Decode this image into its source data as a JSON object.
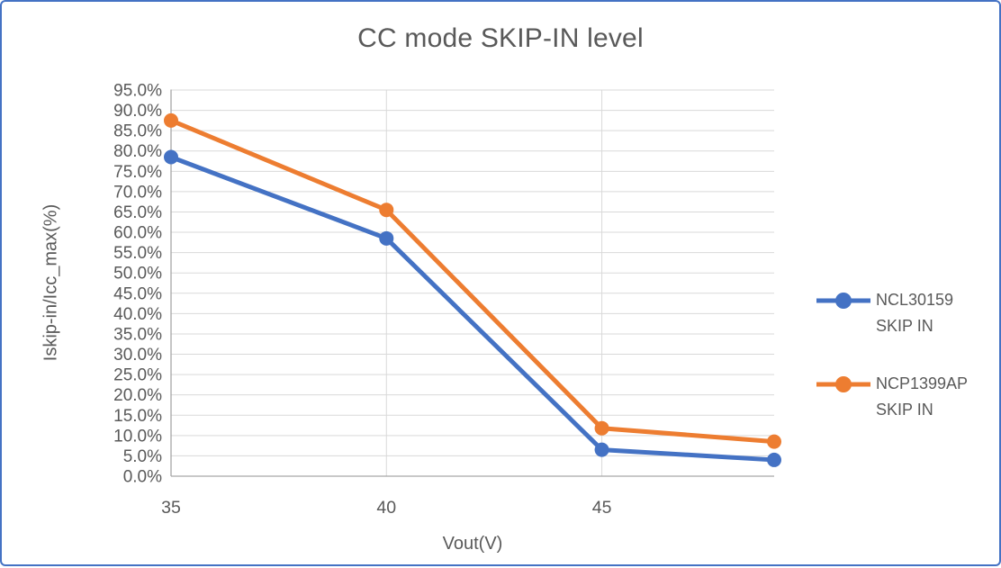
{
  "chart_data": {
    "type": "line",
    "title": "CC mode SKIP-IN level",
    "xlabel": "Vout(V)",
    "ylabel": "Iskip-in/Icc_max(%)",
    "x": [
      35,
      40,
      45,
      49
    ],
    "series": [
      {
        "name": "NCL30159 SKIP IN",
        "color": "#4472C4",
        "values": [
          78.5,
          58.5,
          6.5,
          4.0
        ]
      },
      {
        "name": "NCP1399AP SKIP IN",
        "color": "#ED7D31",
        "values": [
          87.5,
          65.5,
          11.8,
          8.5
        ]
      }
    ],
    "xlim": [
      35,
      49
    ],
    "ylim": [
      0,
      95
    ],
    "x_ticks": [
      35,
      40,
      45
    ],
    "y_tick_step": 5,
    "y_tick_format": "0.0%",
    "grid": true,
    "legend_position": "right",
    "marker": "circle"
  },
  "style": {
    "frame_border_color": "#4472C4",
    "title_color": "#595959",
    "label_color": "#595959",
    "gridline_color": "#D9D9D9",
    "axis_line_color": "#A6A6A6",
    "series_blue": "#4472C4",
    "series_orange": "#ED7D31"
  }
}
